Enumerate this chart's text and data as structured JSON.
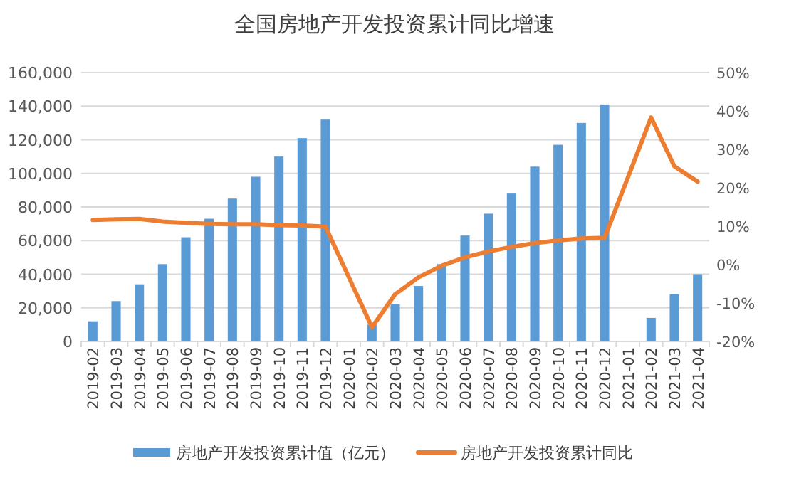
{
  "chart_data": {
    "type": "bar",
    "title": "全国房地产开发投资累计同比增速",
    "categories": [
      "2019-02",
      "2019-03",
      "2019-04",
      "2019-05",
      "2019-06",
      "2019-07",
      "2019-08",
      "2019-09",
      "2019-10",
      "2019-11",
      "2019-12",
      "2020-01",
      "2020-02",
      "2020-03",
      "2020-04",
      "2020-05",
      "2020-06",
      "2020-07",
      "2020-08",
      "2020-09",
      "2020-10",
      "2020-11",
      "2020-12",
      "2021-01",
      "2021-02",
      "2021-03",
      "2021-04"
    ],
    "series": [
      {
        "name": "房地产开发投资累计值（亿元）",
        "color": "#5b9bd5",
        "values": [
          12000,
          24000,
          34000,
          46000,
          62000,
          73000,
          85000,
          98000,
          110000,
          121000,
          132000,
          null,
          10000,
          22000,
          33000,
          46000,
          63000,
          76000,
          88000,
          104000,
          117000,
          130000,
          141000,
          null,
          14000,
          28000,
          40000
        ]
      },
      {
        "name": "房地产开发投资累计同比",
        "type": "line",
        "axis": "y2",
        "color": "#ed7d31",
        "marker": "none",
        "values": [
          11.6,
          11.8,
          11.9,
          11.2,
          10.9,
          10.6,
          10.5,
          10.5,
          10.3,
          10.2,
          9.9,
          null,
          -16.3,
          -7.7,
          -3.3,
          -0.3,
          1.9,
          3.4,
          4.6,
          5.6,
          6.3,
          6.8,
          7.0,
          null,
          38.3,
          25.6,
          21.6
        ]
      }
    ],
    "ylim": [
      0,
      160000
    ],
    "yticks": [
      {
        "value": 0,
        "label": "0"
      },
      {
        "value": 20000,
        "label": "20,000"
      },
      {
        "value": 40000,
        "label": "40,000"
      },
      {
        "value": 60000,
        "label": "60,000"
      },
      {
        "value": 80000,
        "label": "80,000"
      },
      {
        "value": 100000,
        "label": "100,000"
      },
      {
        "value": 120000,
        "label": "120,000"
      },
      {
        "value": 140000,
        "label": "140,000"
      },
      {
        "value": 160000,
        "label": "160,000"
      }
    ],
    "y2lim": [
      -20,
      50
    ],
    "y2ticks": [
      {
        "value": -20,
        "label": "-20%"
      },
      {
        "value": -10,
        "label": "-10%"
      },
      {
        "value": 0,
        "label": "0%"
      },
      {
        "value": 10,
        "label": "10%"
      },
      {
        "value": 20,
        "label": "20%"
      },
      {
        "value": 30,
        "label": "30%"
      },
      {
        "value": 40,
        "label": "40%"
      },
      {
        "value": 50,
        "label": "50%"
      }
    ],
    "grid": "y",
    "legend": "bottom"
  }
}
